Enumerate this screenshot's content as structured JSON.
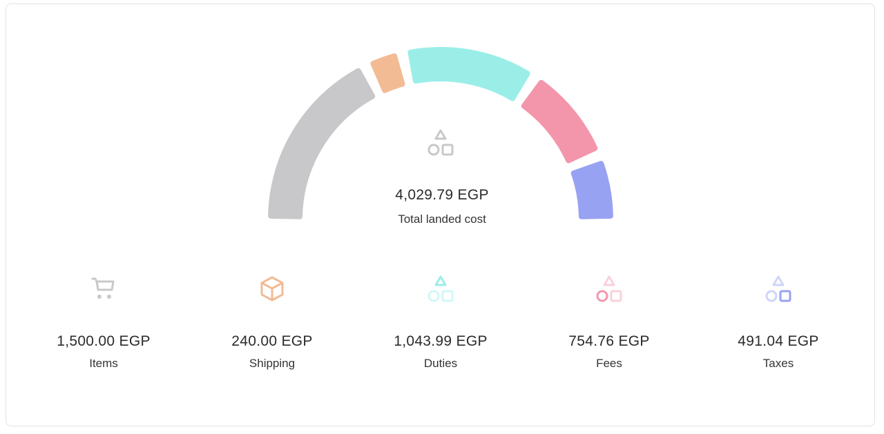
{
  "chart_data": {
    "type": "pie",
    "variant": "semi-circle gauge",
    "currency": "EGP",
    "total": {
      "value": "4,029.79 EGP",
      "label": "Total landed cost",
      "icon": "shapes-icon"
    },
    "segments": [
      {
        "name": "Items",
        "value": 1500.0,
        "display": "1,500.00 EGP",
        "color": "#c8c8cb",
        "icon": "cart-icon"
      },
      {
        "name": "Shipping",
        "value": 240.0,
        "display": "240.00 EGP",
        "color": "#f2bb94",
        "icon": "box-icon"
      },
      {
        "name": "Duties",
        "value": 1043.99,
        "display": "1,043.99 EGP",
        "color": "#9beee8",
        "icon": "shapes-icon"
      },
      {
        "name": "Fees",
        "value": 754.76,
        "display": "754.76 EGP",
        "color": "#f396ac",
        "icon": "shapes-icon"
      },
      {
        "name": "Taxes",
        "value": 491.04,
        "display": "491.04 EGP",
        "color": "#97a2f2",
        "icon": "shapes-icon"
      }
    ]
  }
}
